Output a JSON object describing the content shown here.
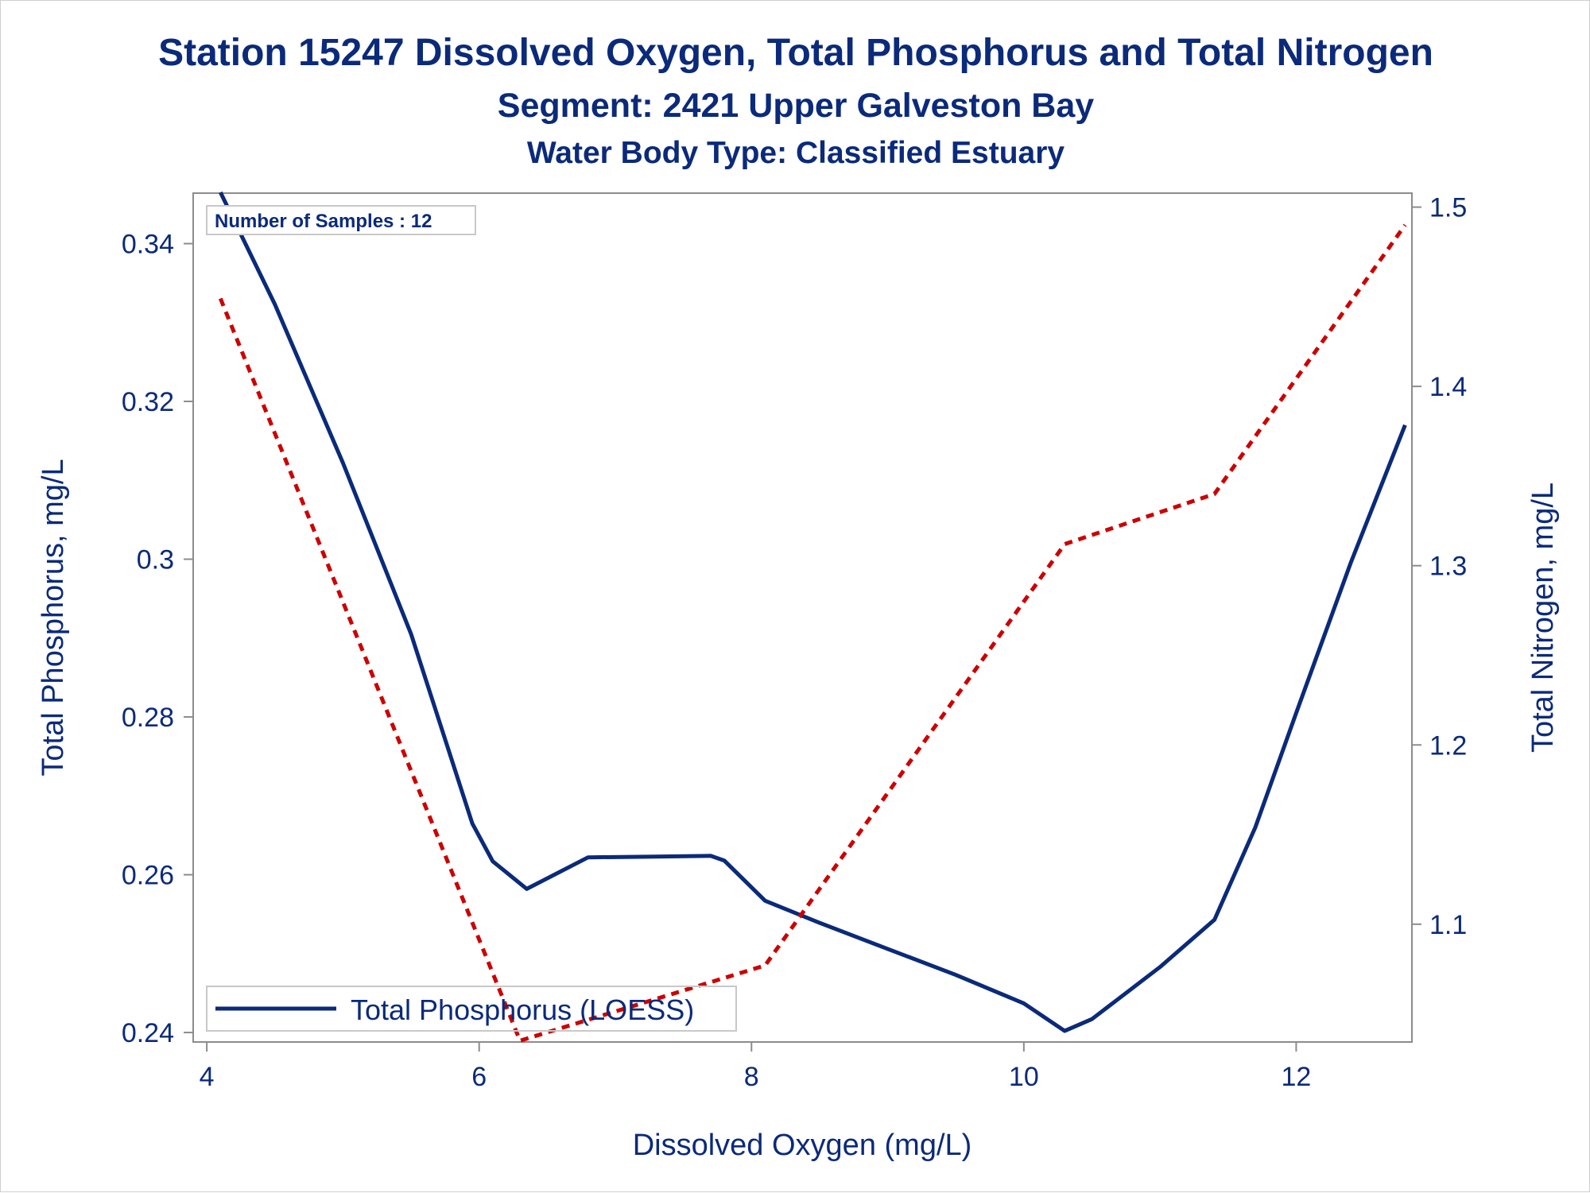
{
  "titles": {
    "line1": "Station 15247  Dissolved Oxygen, Total Phosphorus and Total Nitrogen",
    "line2": "Segment: 2421  Upper Galveston Bay",
    "line3": "Water Body Type: Classified Estuary"
  },
  "inset": {
    "samples_label": "Number of Samples : 12"
  },
  "colors": {
    "text": "#0b2a7a",
    "phosphorus_line": "#0b2a7a",
    "nitrogen_line": "#cc0000",
    "axis": "#8c8c8c"
  },
  "chart_data": {
    "type": "line",
    "xlabel": "Dissolved Oxygen (mg/L)",
    "ylabel": "Total Phosphorus, mg/L",
    "y2label": "Total Nitrogen, mg/L",
    "xlim": [
      3.9,
      12.85
    ],
    "ylim": [
      0.2388,
      0.3464
    ],
    "y2lim": [
      1.0343,
      1.5078
    ],
    "x_ticks": [
      4,
      6,
      8,
      10,
      12
    ],
    "x_tick_labels": [
      "4",
      "6",
      "8",
      "10",
      "12"
    ],
    "y_ticks": [
      0.24,
      0.26,
      0.28,
      0.3,
      0.32,
      0.34
    ],
    "y_tick_labels": [
      "0.24",
      "0.26",
      "0.28",
      "0.3",
      "0.32",
      "0.34"
    ],
    "y2_ticks": [
      1.1,
      1.2,
      1.3,
      1.4,
      1.5
    ],
    "y2_tick_labels": [
      "1.1",
      "1.2",
      "1.3",
      "1.4",
      "1.5"
    ],
    "grid": false,
    "legend_position": "bottom-left",
    "series": [
      {
        "name": "Total Phosphorus (LOESS)",
        "axis": "left",
        "style": "solid",
        "x": [
          4.1,
          4.5,
          5.0,
          5.5,
          5.95,
          6.1,
          6.35,
          6.8,
          7.3,
          7.7,
          7.8,
          8.1,
          8.5,
          9.0,
          9.5,
          10.0,
          10.3,
          10.5,
          11.0,
          11.4,
          11.7,
          12.0,
          12.4,
          12.8
        ],
        "y": [
          0.3465,
          0.3323,
          0.3122,
          0.2905,
          0.2665,
          0.2617,
          0.2582,
          0.2622,
          0.2623,
          0.2624,
          0.2618,
          0.2567,
          0.2539,
          0.2506,
          0.2473,
          0.2437,
          0.2402,
          0.2417,
          0.2483,
          0.2543,
          0.266,
          0.2805,
          0.2995,
          0.317
        ]
      },
      {
        "name": "Total Nitrogen",
        "axis": "right",
        "style": "dashed",
        "x": [
          4.1,
          6.3,
          8.1,
          10.3,
          11.4,
          12.8
        ],
        "y": [
          1.449,
          1.035,
          1.077,
          1.312,
          1.34,
          1.49
        ]
      }
    ]
  }
}
